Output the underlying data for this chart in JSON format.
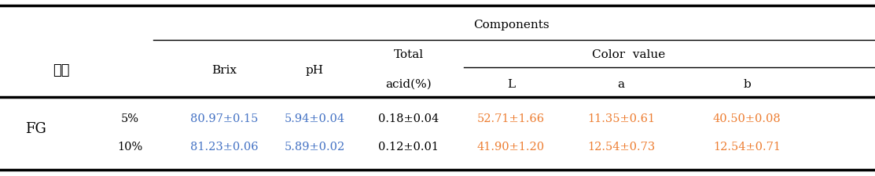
{
  "title_row": "Components",
  "header_korean": "조청",
  "header_col1": "Brix",
  "header_col2": "pH",
  "header_col3_line1": "Total",
  "header_col3_line2": "acid(%)",
  "header_color_value": "Color  value",
  "header_L": "L",
  "header_a": "a",
  "header_b": "b",
  "group_label": "FG",
  "row1_label": "5%",
  "row2_label": "10%",
  "row1_brix": "80.97±0.15",
  "row1_ph": "5.94±0.04",
  "row1_acid": "0.18±0.04",
  "row1_L": "52.71±1.66",
  "row1_a": "11.35±0.61",
  "row1_b": "40.50±0.08",
  "row2_brix": "81.23±0.06",
  "row2_ph": "5.89±0.02",
  "row2_acid": "0.12±0.01",
  "row2_L": "41.90±1.20",
  "row2_a": "12.54±0.73",
  "row2_b": "12.54±0.71",
  "blue": "#4472C4",
  "orange": "#ED7D31",
  "black": "#000000",
  "bg": "#FFFFFF",
  "fs_header": 11,
  "fs_data": 10.5,
  "fs_korean": 13
}
